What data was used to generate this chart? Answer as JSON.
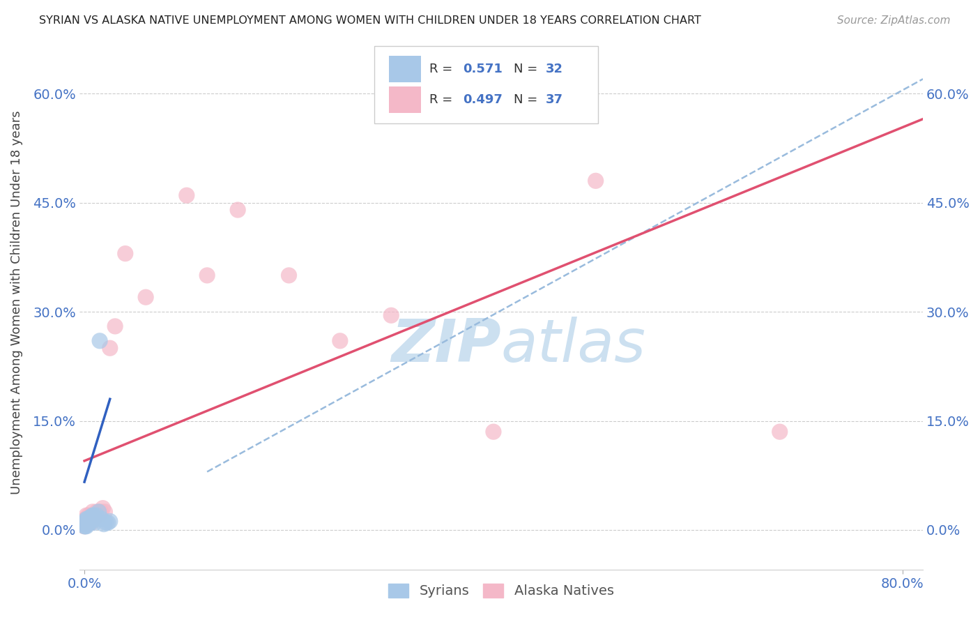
{
  "title": "SYRIAN VS ALASKA NATIVE UNEMPLOYMENT AMONG WOMEN WITH CHILDREN UNDER 18 YEARS CORRELATION CHART",
  "source": "Source: ZipAtlas.com",
  "ylabel": "Unemployment Among Women with Children Under 18 years",
  "xlim": [
    -0.005,
    0.82
  ],
  "ylim": [
    -0.055,
    0.68
  ],
  "x_tick_left": "0.0%",
  "x_tick_right": "80.0%",
  "ylabel_ticks": [
    "0.0%",
    "15.0%",
    "30.0%",
    "45.0%",
    "60.0%"
  ],
  "ylabel_vals": [
    0.0,
    0.15,
    0.3,
    0.45,
    0.6
  ],
  "legend_R_syrian": "0.571",
  "legend_N_syrian": "32",
  "legend_R_alaska": "0.497",
  "legend_N_alaska": "37",
  "syrian_color": "#a8c8e8",
  "alaska_color": "#f4b8c8",
  "trendline_syrian_color": "#3060c0",
  "trendline_alaska_color": "#e05070",
  "refline_color": "#99bbdd",
  "watermark_zip": "ZIP",
  "watermark_atlas": "atlas",
  "watermark_color": "#cce0f0",
  "background_color": "#ffffff",
  "grid_color": "#cccccc",
  "title_color": "#222222",
  "label_color": "#444444",
  "tick_color": "#4472c4",
  "syrian_x": [
    0.0,
    0.001,
    0.001,
    0.001,
    0.001,
    0.002,
    0.002,
    0.002,
    0.002,
    0.003,
    0.003,
    0.003,
    0.004,
    0.004,
    0.005,
    0.005,
    0.006,
    0.006,
    0.007,
    0.008,
    0.008,
    0.009,
    0.01,
    0.011,
    0.012,
    0.014,
    0.015,
    0.017,
    0.019,
    0.021,
    0.023,
    0.025
  ],
  "syrian_y": [
    0.005,
    0.01,
    0.005,
    0.008,
    0.012,
    0.008,
    0.01,
    0.015,
    0.005,
    0.01,
    0.015,
    0.008,
    0.01,
    0.012,
    0.01,
    0.015,
    0.01,
    0.018,
    0.015,
    0.015,
    0.02,
    0.02,
    0.01,
    0.015,
    0.02,
    0.025,
    0.26,
    0.015,
    0.008,
    0.01,
    0.01,
    0.012
  ],
  "alaska_x": [
    0.0,
    0.001,
    0.001,
    0.002,
    0.002,
    0.002,
    0.003,
    0.003,
    0.004,
    0.004,
    0.005,
    0.005,
    0.006,
    0.006,
    0.007,
    0.008,
    0.008,
    0.009,
    0.01,
    0.012,
    0.014,
    0.016,
    0.018,
    0.02,
    0.025,
    0.03,
    0.04,
    0.06,
    0.1,
    0.12,
    0.15,
    0.2,
    0.25,
    0.3,
    0.4,
    0.5,
    0.68
  ],
  "alaska_y": [
    0.005,
    0.008,
    0.015,
    0.01,
    0.015,
    0.02,
    0.008,
    0.015,
    0.01,
    0.02,
    0.01,
    0.018,
    0.012,
    0.015,
    0.01,
    0.015,
    0.025,
    0.015,
    0.02,
    0.025,
    0.02,
    0.025,
    0.03,
    0.025,
    0.25,
    0.28,
    0.38,
    0.32,
    0.46,
    0.35,
    0.44,
    0.35,
    0.26,
    0.295,
    0.135,
    0.48,
    0.135
  ],
  "alaska_trendline_x0": 0.0,
  "alaska_trendline_x1": 0.82,
  "alaska_trendline_y0": 0.095,
  "alaska_trendline_y1": 0.565,
  "syrian_trendline_x0": 0.0,
  "syrian_trendline_x1": 0.025,
  "syrian_trendline_y0": 0.066,
  "syrian_trendline_y1": 0.18,
  "refline_x0": 0.12,
  "refline_x1": 0.82,
  "refline_y0": 0.08,
  "refline_y1": 0.62
}
